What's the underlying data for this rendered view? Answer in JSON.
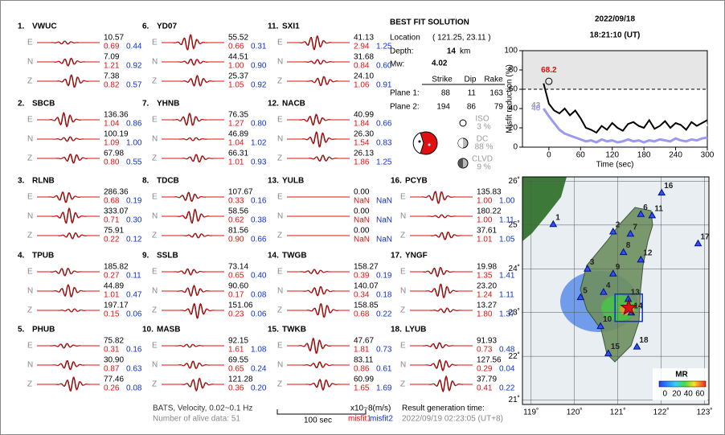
{
  "header": {
    "date": "2022/09/18",
    "time": "18:21:10  (UT)"
  },
  "components": [
    "E",
    "N",
    "Z"
  ],
  "stations": [
    {
      "num": "1.",
      "name": "VWUC",
      "comps": [
        [
          "10.57",
          "0.69",
          "0.44"
        ],
        [
          "7.09",
          "1.21",
          "0.92"
        ],
        [
          "7.38",
          "0.82",
          "0.57"
        ]
      ]
    },
    {
      "num": "2.",
      "name": "SBCB",
      "comps": [
        [
          "136.36",
          "1.04",
          "0.86"
        ],
        [
          "100.19",
          "1.09",
          "1.00"
        ],
        [
          "67.98",
          "0.80",
          "0.55"
        ]
      ]
    },
    {
      "num": "3.",
      "name": "RLNB",
      "comps": [
        [
          "286.36",
          "0.68",
          "0.19"
        ],
        [
          "333.07",
          "0.71",
          "0.30"
        ],
        [
          "75.91",
          "0.22",
          "0.12"
        ]
      ]
    },
    {
      "num": "4.",
      "name": "TPUB",
      "comps": [
        [
          "185.82",
          "0.27",
          "0.11"
        ],
        [
          "44.89",
          "1.01",
          "0.47"
        ],
        [
          "197.17",
          "0.15",
          "0.06"
        ]
      ]
    },
    {
      "num": "5.",
      "name": "PHUB",
      "comps": [
        [
          "75.82",
          "0.31",
          "0.16"
        ],
        [
          "30.90",
          "0.87",
          "0.63"
        ],
        [
          "77.46",
          "0.26",
          "0.08"
        ]
      ]
    },
    {
      "num": "6.",
      "name": "YD07",
      "comps": [
        [
          "55.52",
          "0.66",
          "0.31"
        ],
        [
          "44.51",
          "1.00",
          "0.90"
        ],
        [
          "25.37",
          "1.05",
          "0.92"
        ]
      ]
    },
    {
      "num": "7.",
      "name": "YHNB",
      "comps": [
        [
          "76.35",
          "1.27",
          "0.80"
        ],
        [
          "46.89",
          "1.04",
          "1.02"
        ],
        [
          "66.31",
          "1.01",
          "0.93"
        ]
      ]
    },
    {
      "num": "8.",
      "name": "TDCB",
      "comps": [
        [
          "107.67",
          "0.33",
          "0.16"
        ],
        [
          "58.56",
          "0.62",
          "0.38"
        ],
        [
          "81.56",
          "0.90",
          "0.66"
        ]
      ]
    },
    {
      "num": "9.",
      "name": "SSLB",
      "comps": [
        [
          "73.14",
          "0.65",
          "0.40"
        ],
        [
          "90.60",
          "0.17",
          "0.08"
        ],
        [
          "151.06",
          "0.23",
          "0.06"
        ]
      ]
    },
    {
      "num": "10.",
      "name": "MASB",
      "comps": [
        [
          "92.15",
          "1.61",
          "1.08"
        ],
        [
          "69.55",
          "0.65",
          "0.24"
        ],
        [
          "121.28",
          "0.36",
          "0.20"
        ]
      ]
    },
    {
      "num": "11.",
      "name": "SXI1",
      "comps": [
        [
          "41.13",
          "2.94",
          "1.25"
        ],
        [
          "31.68",
          "0.84",
          "0.60"
        ],
        [
          "24.10",
          "1.06",
          "0.91"
        ]
      ]
    },
    {
      "num": "12.",
      "name": "NACB",
      "comps": [
        [
          "40.99",
          "1.84",
          "0.66"
        ],
        [
          "26.30",
          "1.54",
          "0.83"
        ],
        [
          "26.13",
          "1.86",
          "1.25"
        ]
      ]
    },
    {
      "num": "13.",
      "name": "YULB",
      "comps": [
        [
          "0.00",
          "NaN",
          "NaN"
        ],
        [
          "0.00",
          "NaN",
          "NaN"
        ],
        [
          "0.00",
          "NaN",
          "NaN"
        ]
      ]
    },
    {
      "num": "14.",
      "name": "TWGB",
      "comps": [
        [
          "158.27",
          "0.39",
          "0.19"
        ],
        [
          "140.07",
          "0.34",
          "0.18"
        ],
        [
          "158.85",
          "0.68",
          "0.22"
        ]
      ]
    },
    {
      "num": "15.",
      "name": "TWKB",
      "comps": [
        [
          "47.67",
          "1.81",
          "0.73"
        ],
        [
          "83.11",
          "0.86",
          "0.61"
        ],
        [
          "60.99",
          "1.65",
          "1.69"
        ]
      ]
    },
    {
      "num": "16.",
      "name": "PCYB",
      "comps": [
        [
          "135.83",
          "1.00",
          "1.00"
        ],
        [
          "180.22",
          "1.00",
          "1.11"
        ],
        [
          "37.61",
          "1.01",
          "1.05"
        ]
      ]
    },
    {
      "num": "17.",
      "name": "YNGF",
      "comps": [
        [
          "19.98",
          "1.35",
          "1.41"
        ],
        [
          "23.20",
          "1.24",
          "1.11"
        ],
        [
          "13.27",
          "1.80",
          "1.37"
        ]
      ]
    },
    {
      "num": "18.",
      "name": "LYUB",
      "comps": [
        [
          "91.93",
          "0.73",
          "0.48"
        ],
        [
          "127.56",
          "0.29",
          "0.04"
        ],
        [
          "37.79",
          "0.41",
          "0.22"
        ]
      ]
    }
  ],
  "solution": {
    "title": "BEST FIT SOLUTION",
    "location_label": "Location",
    "location": "( 121.25, 23.11 )",
    "depth_label": "Depth:",
    "depth": "14",
    "depth_unit": "km",
    "mw_label": "Mw:",
    "mw": "4.02",
    "plane_headers": [
      "Strike",
      "Dip",
      "Rake"
    ],
    "planes": [
      [
        "Plane 1:",
        "88",
        "11",
        "163"
      ],
      [
        "Plane 2:",
        "194",
        "86",
        "79"
      ]
    ],
    "decomposition": [
      {
        "label": "ISO",
        "value": "3 %"
      },
      {
        "label": "DC",
        "value": "88 %"
      },
      {
        "label": "CLVD",
        "value": "9 %"
      }
    ]
  },
  "footer": {
    "filter": "BATS, Velocity, 0.02~0.1 Hz",
    "alive": "Number of alive data: 51",
    "scale": "100 sec",
    "unit": "x10~8(m/s)",
    "misfit1": "misfit1",
    "misfit2": "misfit2",
    "gen_label": "Result generation time:",
    "gen_time": "2022/09/19 02:23:05 (UT+8)"
  },
  "chart_data": {
    "type": "line",
    "x_label": "Time (sec)",
    "y_label": "Misfit reduction (%)",
    "xlim": [
      -50,
      300
    ],
    "xticks": [
      0,
      60,
      120,
      180,
      240,
      300
    ],
    "ylim": [
      0,
      100
    ],
    "yticks": [
      0,
      20,
      40,
      60,
      80,
      100
    ],
    "threshold": 60,
    "best": {
      "x": 0,
      "y": 68.2
    },
    "x": [
      -10,
      0,
      10,
      20,
      30,
      40,
      50,
      60,
      70,
      80,
      90,
      100,
      110,
      120,
      130,
      140,
      150,
      160,
      170,
      180,
      190,
      200,
      210,
      220,
      230,
      240,
      250,
      260,
      270,
      280,
      290,
      300
    ],
    "series": [
      {
        "color": "#000000",
        "values": [
          66,
          45,
          38,
          35,
          40,
          33,
          38,
          30,
          20,
          18,
          15,
          22,
          18,
          25,
          20,
          17,
          24,
          26,
          22,
          20,
          28,
          19,
          22,
          27,
          20,
          25,
          23,
          18,
          26,
          22,
          25,
          28
        ]
      },
      {
        "color": "#ffffff",
        "values": [
          43,
          38,
          30,
          32,
          28,
          30,
          25,
          22,
          18,
          20,
          16,
          18,
          20,
          17,
          19,
          18,
          20,
          22,
          19,
          18,
          21,
          19,
          20,
          22,
          18,
          20,
          21,
          19,
          20,
          21,
          22,
          23
        ]
      },
      {
        "color": "#9a9af0",
        "values": [
          40,
          32,
          25,
          18,
          14,
          12,
          10,
          8,
          6,
          7,
          5,
          8,
          6,
          7,
          5,
          6,
          8,
          6,
          7,
          5,
          7,
          6,
          8,
          7,
          6,
          9,
          7,
          6,
          8,
          7,
          9,
          10
        ]
      }
    ]
  },
  "map": {
    "lonlim": [
      118.8,
      123.1
    ],
    "latlim": [
      20.9,
      26.1
    ],
    "lonticks": [
      {
        "value": 119,
        "label": "119˚"
      },
      {
        "value": 120,
        "label": "120˚"
      },
      {
        "value": 121,
        "label": "121˚"
      },
      {
        "value": 122,
        "label": "122˚"
      },
      {
        "value": 123,
        "label": "123˚"
      }
    ],
    "latticks": [
      {
        "value": 21,
        "label": "21˚"
      },
      {
        "value": 22,
        "label": "22˚"
      },
      {
        "value": 23,
        "label": "23˚"
      },
      {
        "value": 24,
        "label": "24˚"
      },
      {
        "value": 25,
        "label": "25˚"
      },
      {
        "value": 26,
        "label": "26˚"
      }
    ],
    "epicenter": {
      "lon": 121.25,
      "lat": 23.11
    },
    "stations": [
      {
        "label": "1",
        "lon": 119.51,
        "lat": 25.02
      },
      {
        "label": "2",
        "lon": 120.89,
        "lat": 24.85
      },
      {
        "label": "3",
        "lon": 120.3,
        "lat": 24.0
      },
      {
        "label": "4",
        "lon": 120.67,
        "lat": 23.47
      },
      {
        "label": "5",
        "lon": 120.14,
        "lat": 23.35
      },
      {
        "label": "6",
        "lon": 121.53,
        "lat": 25.25
      },
      {
        "label": "7",
        "lon": 121.29,
        "lat": 24.8
      },
      {
        "label": "8",
        "lon": 121.13,
        "lat": 24.38
      },
      {
        "label": "9",
        "lon": 120.89,
        "lat": 23.89
      },
      {
        "label": "10",
        "lon": 120.6,
        "lat": 22.69
      },
      {
        "label": "11",
        "lon": 121.79,
        "lat": 25.22
      },
      {
        "label": "12",
        "lon": 121.53,
        "lat": 24.21
      },
      {
        "label": "13",
        "lon": 121.24,
        "lat": 23.31
      },
      {
        "label": "14",
        "lon": 121.31,
        "lat": 23.0
      },
      {
        "label": "15",
        "lon": 120.78,
        "lat": 22.07
      },
      {
        "label": "16",
        "lon": 122.01,
        "lat": 25.74
      },
      {
        "label": "17",
        "lon": 122.85,
        "lat": 24.58
      },
      {
        "label": "18",
        "lon": 121.44,
        "lat": 22.22
      }
    ],
    "colorbar": {
      "title": "MR",
      "range": [
        -10,
        70
      ],
      "ticks": [
        0,
        20,
        40,
        60
      ]
    }
  }
}
